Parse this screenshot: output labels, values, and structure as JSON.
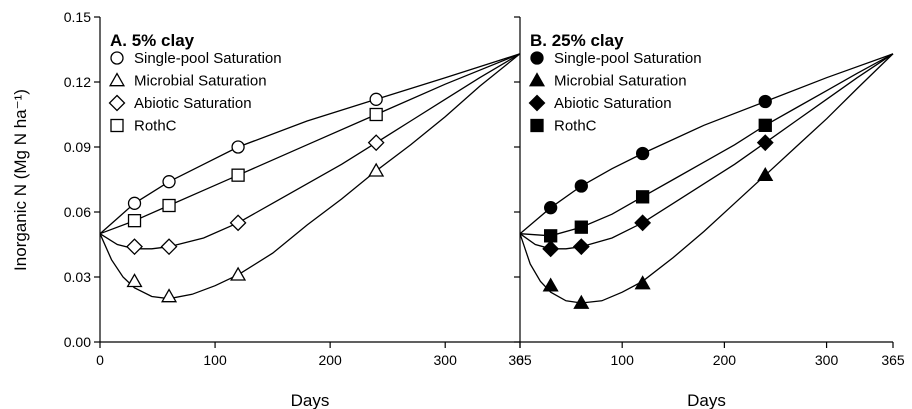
{
  "chart_data": {
    "type": "scatter",
    "ylabel": "Inorganic N (Mg N ha⁻¹)",
    "ylim": [
      0,
      0.15
    ],
    "yticks": [
      "0.00",
      "0.03",
      "0.06",
      "0.09",
      "0.12",
      "0.15"
    ],
    "xlim": [
      0,
      365
    ],
    "xticks": [
      "0",
      "100",
      "200",
      "300",
      "365"
    ],
    "panels": [
      {
        "title": "A. 5% clay",
        "xlabel": "Days",
        "filled": false,
        "series": [
          {
            "name": "Single-pool Saturation",
            "marker": "circle",
            "points": [
              [
                30,
                0.064
              ],
              [
                60,
                0.074
              ],
              [
                120,
                0.09
              ],
              [
                240,
                0.112
              ]
            ],
            "curve": [
              [
                0,
                0.05
              ],
              [
                15,
                0.057
              ],
              [
                30,
                0.064
              ],
              [
                60,
                0.074
              ],
              [
                90,
                0.082
              ],
              [
                120,
                0.09
              ],
              [
                180,
                0.102
              ],
              [
                240,
                0.112
              ],
              [
                300,
                0.122
              ],
              [
                365,
                0.133
              ]
            ]
          },
          {
            "name": "Microbial Saturation",
            "marker": "triangle",
            "points": [
              [
                30,
                0.028
              ],
              [
                60,
                0.021
              ],
              [
                120,
                0.031
              ],
              [
                240,
                0.079
              ]
            ],
            "curve": [
              [
                0,
                0.05
              ],
              [
                10,
                0.038
              ],
              [
                20,
                0.03
              ],
              [
                30,
                0.025
              ],
              [
                45,
                0.021
              ],
              [
                60,
                0.02
              ],
              [
                80,
                0.022
              ],
              [
                100,
                0.026
              ],
              [
                120,
                0.031
              ],
              [
                150,
                0.041
              ],
              [
                180,
                0.054
              ],
              [
                210,
                0.066
              ],
              [
                240,
                0.079
              ],
              [
                270,
                0.091
              ],
              [
                300,
                0.104
              ],
              [
                330,
                0.118
              ],
              [
                365,
                0.133
              ]
            ]
          },
          {
            "name": "Abiotic Saturation",
            "marker": "diamond",
            "points": [
              [
                30,
                0.044
              ],
              [
                60,
                0.044
              ],
              [
                120,
                0.055
              ],
              [
                240,
                0.092
              ]
            ],
            "curve": [
              [
                0,
                0.05
              ],
              [
                15,
                0.045
              ],
              [
                30,
                0.043
              ],
              [
                45,
                0.043
              ],
              [
                60,
                0.044
              ],
              [
                90,
                0.048
              ],
              [
                120,
                0.055
              ],
              [
                150,
                0.064
              ],
              [
                180,
                0.073
              ],
              [
                210,
                0.082
              ],
              [
                240,
                0.092
              ],
              [
                270,
                0.102
              ],
              [
                300,
                0.112
              ],
              [
                330,
                0.122
              ],
              [
                365,
                0.133
              ]
            ]
          },
          {
            "name": "RothC",
            "marker": "square",
            "points": [
              [
                30,
                0.056
              ],
              [
                60,
                0.063
              ],
              [
                120,
                0.077
              ],
              [
                240,
                0.105
              ]
            ],
            "curve": [
              [
                0,
                0.05
              ],
              [
                30,
                0.056
              ],
              [
                60,
                0.063
              ],
              [
                90,
                0.07
              ],
              [
                120,
                0.077
              ],
              [
                180,
                0.091
              ],
              [
                240,
                0.105
              ],
              [
                300,
                0.119
              ],
              [
                365,
                0.133
              ]
            ]
          }
        ]
      },
      {
        "title": "B. 25% clay",
        "xlabel": "Days",
        "filled": true,
        "series": [
          {
            "name": "Single-pool Saturation",
            "marker": "circle",
            "points": [
              [
                30,
                0.062
              ],
              [
                60,
                0.072
              ],
              [
                120,
                0.087
              ],
              [
                240,
                0.111
              ]
            ],
            "curve": [
              [
                0,
                0.05
              ],
              [
                15,
                0.056
              ],
              [
                30,
                0.062
              ],
              [
                60,
                0.072
              ],
              [
                90,
                0.08
              ],
              [
                120,
                0.087
              ],
              [
                180,
                0.1
              ],
              [
                240,
                0.111
              ],
              [
                300,
                0.122
              ],
              [
                365,
                0.133
              ]
            ]
          },
          {
            "name": "Microbial Saturation",
            "marker": "triangle",
            "points": [
              [
                30,
                0.026
              ],
              [
                60,
                0.018
              ],
              [
                120,
                0.027
              ],
              [
                240,
                0.077
              ]
            ],
            "curve": [
              [
                0,
                0.05
              ],
              [
                10,
                0.036
              ],
              [
                20,
                0.028
              ],
              [
                30,
                0.023
              ],
              [
                45,
                0.019
              ],
              [
                60,
                0.018
              ],
              [
                80,
                0.019
              ],
              [
                100,
                0.023
              ],
              [
                120,
                0.028
              ],
              [
                150,
                0.039
              ],
              [
                180,
                0.051
              ],
              [
                210,
                0.064
              ],
              [
                240,
                0.077
              ],
              [
                270,
                0.09
              ],
              [
                300,
                0.103
              ],
              [
                330,
                0.117
              ],
              [
                365,
                0.133
              ]
            ]
          },
          {
            "name": "Abiotic Saturation",
            "marker": "diamond",
            "points": [
              [
                30,
                0.043
              ],
              [
                60,
                0.044
              ],
              [
                120,
                0.055
              ],
              [
                240,
                0.092
              ]
            ],
            "curve": [
              [
                0,
                0.05
              ],
              [
                15,
                0.045
              ],
              [
                30,
                0.043
              ],
              [
                45,
                0.043
              ],
              [
                60,
                0.044
              ],
              [
                90,
                0.048
              ],
              [
                120,
                0.055
              ],
              [
                150,
                0.064
              ],
              [
                180,
                0.073
              ],
              [
                210,
                0.082
              ],
              [
                240,
                0.092
              ],
              [
                270,
                0.102
              ],
              [
                300,
                0.112
              ],
              [
                330,
                0.122
              ],
              [
                365,
                0.133
              ]
            ]
          },
          {
            "name": "RothC",
            "marker": "square",
            "points": [
              [
                30,
                0.049
              ],
              [
                60,
                0.053
              ],
              [
                120,
                0.067
              ],
              [
                240,
                0.1
              ]
            ],
            "curve": [
              [
                0,
                0.05
              ],
              [
                30,
                0.049
              ],
              [
                60,
                0.053
              ],
              [
                90,
                0.059
              ],
              [
                120,
                0.067
              ],
              [
                150,
                0.075
              ],
              [
                180,
                0.083
              ],
              [
                210,
                0.091
              ],
              [
                240,
                0.1
              ],
              [
                270,
                0.108
              ],
              [
                300,
                0.116
              ],
              [
                330,
                0.124
              ],
              [
                365,
                0.133
              ]
            ]
          }
        ]
      }
    ]
  }
}
